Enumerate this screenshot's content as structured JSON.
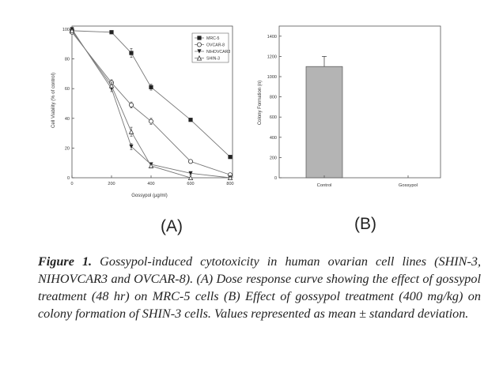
{
  "figure": {
    "caption_label": "Figure 1.",
    "caption_text": "Gossypol-induced cytotoxicity in human ovarian cell lines (SHIN-3, NIHOVCAR3 and OVCAR-8). (A) Dose response curve showing the effect of gossypol treatment (48 hr) on MRC-5 cells (B) Effect of gossypol treatment (400 mg/kg) on colony formation of SHIN-3 cells. Values represented as mean ± standard deviation."
  },
  "chart_data": [
    {
      "panel_label": "(A)",
      "type": "line",
      "xlabel": "Gossypol (µg/ml)",
      "ylabel": "Cell Viability (% of control)",
      "xlim": [
        0,
        800
      ],
      "ylim": [
        0,
        100
      ],
      "xticks": [
        0,
        200,
        400,
        600,
        800
      ],
      "yticks": [
        0,
        20,
        40,
        60,
        80,
        100
      ],
      "legend_position": "top-right",
      "grid": false,
      "series": [
        {
          "name": "MRC-5",
          "marker": "filled-square",
          "x": [
            0,
            200,
            300,
            400,
            600,
            800
          ],
          "y": [
            99,
            98,
            84,
            61,
            39,
            14
          ],
          "err": [
            1,
            1,
            3,
            2,
            1,
            1
          ]
        },
        {
          "name": "OVCAR-8",
          "marker": "open-circle",
          "x": [
            0,
            200,
            300,
            400,
            600,
            800
          ],
          "y": [
            98,
            64,
            49,
            38,
            11,
            2
          ],
          "err": [
            1,
            2,
            2,
            2,
            1,
            1
          ]
        },
        {
          "name": "NIHOVCAR3",
          "marker": "filled-triangle-down",
          "x": [
            0,
            200,
            300,
            400,
            600,
            800
          ],
          "y": [
            100,
            60,
            21,
            9,
            3,
            0
          ],
          "err": [
            1,
            2,
            2,
            1,
            1,
            0
          ]
        },
        {
          "name": "SHIN-3",
          "marker": "open-triangle-up",
          "x": [
            0,
            200,
            300,
            400,
            600,
            800
          ],
          "y": [
            99,
            62,
            31,
            8,
            0,
            0
          ],
          "err": [
            1,
            2,
            3,
            1,
            0,
            0
          ]
        }
      ]
    },
    {
      "panel_label": "(B)",
      "type": "bar",
      "ylabel": "Colony Formation (n)",
      "categories": [
        "Control",
        "Gossypol"
      ],
      "values": [
        1100,
        0
      ],
      "errors": [
        100,
        0
      ],
      "ylim": [
        0,
        1500
      ],
      "yticks": [
        0,
        200,
        400,
        600,
        800,
        1000,
        1200,
        1400
      ],
      "bar_color": "#b4b4b4"
    }
  ]
}
